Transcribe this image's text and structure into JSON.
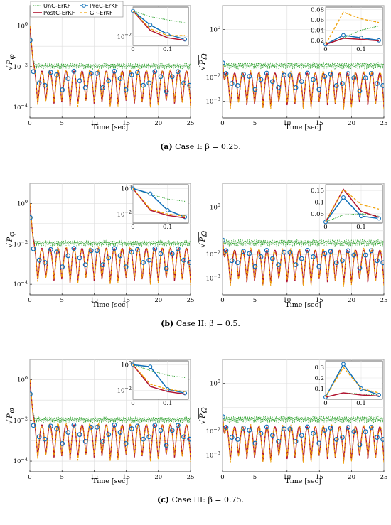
{
  "colors": {
    "UnC-ErKF": "#2ca02c",
    "PreC-ErKF": "#0f6fb8",
    "PostC-ErKF": "#b0122f",
    "GP-ErKF": "#f0a30a"
  },
  "legend": [
    "UnC-ErKF",
    "PreC-ErKF",
    "PostC-ErKF",
    "GP-ErKF"
  ],
  "captions": [
    {
      "tag": "(a)",
      "text": " Case I: β = 0.25."
    },
    {
      "tag": "(b)",
      "text": " Case II: β = 0.5."
    },
    {
      "tag": "(c)",
      "text": " Case III: β = 0.75."
    }
  ],
  "xlabel": "Time [sec]",
  "ylabel_left": "√P_φ",
  "ylabel_right": "√P_Ω",
  "chart_data": [
    {
      "type": "line",
      "panel": "a-left",
      "ylabel": "√P_φ",
      "xlabel": "Time [sec]",
      "xlim": [
        0,
        25
      ],
      "ylim": [
        3e-05,
        10
      ],
      "yscale": "log",
      "xticks": [
        "0",
        "5",
        "10",
        "15",
        "20",
        "25"
      ],
      "yticks": [
        "10^0",
        "10^-2",
        "10^-4"
      ],
      "grid": true,
      "inset": {
        "x": [
          0,
          0.05,
          0.1,
          0.15
        ],
        "xticks": [
          "0",
          "0.1"
        ],
        "yscale": "log",
        "ylim": [
          0.002,
          2
        ],
        "yticks": [
          "10^-2"
        ],
        "series": [
          {
            "name": "UnC-ErKF",
            "values": [
              1.0,
              0.35,
              0.2,
              0.12
            ]
          },
          {
            "name": "PreC-ErKF",
            "values": [
              1.0,
              0.08,
              0.015,
              0.006
            ]
          },
          {
            "name": "PostC-ErKF",
            "values": [
              1.0,
              0.03,
              0.008,
              0.005
            ]
          },
          {
            "name": "GP-ErKF",
            "values": [
              1.0,
              0.04,
              0.012,
              0.012
            ]
          }
        ]
      }
    },
    {
      "type": "line",
      "panel": "a-right",
      "ylabel": "√P_Ω",
      "xlabel": "Time [sec]",
      "xlim": [
        0,
        25
      ],
      "ylim": [
        0.0002,
        10
      ],
      "yscale": "log",
      "xticks": [
        "0",
        "5",
        "10",
        "15",
        "20",
        "25"
      ],
      "yticks": [
        "10^0",
        "10^-2",
        "10^-3"
      ],
      "grid": true,
      "inset": {
        "x": [
          0,
          0.05,
          0.1,
          0.15
        ],
        "xticks": [
          "0",
          "0.1"
        ],
        "yscale": "linear",
        "ylim": [
          0.01,
          0.085
        ],
        "yticks": [
          "0.02",
          "0.04",
          "0.06",
          "0.08"
        ],
        "series": [
          {
            "name": "UnC-ErKF",
            "values": [
              0.012,
              0.025,
              0.04,
              0.048
            ]
          },
          {
            "name": "PreC-ErKF",
            "values": [
              0.012,
              0.03,
              0.025,
              0.02
            ]
          },
          {
            "name": "PostC-ErKF",
            "values": [
              0.012,
              0.024,
              0.022,
              0.019
            ]
          },
          {
            "name": "GP-ErKF",
            "values": [
              0.012,
              0.075,
              0.062,
              0.055
            ]
          }
        ]
      }
    },
    {
      "type": "line",
      "panel": "b-left",
      "ylabel": "√P_φ",
      "xlabel": "Time [sec]",
      "xlim": [
        0,
        25
      ],
      "ylim": [
        3e-05,
        10
      ],
      "yscale": "log",
      "xticks": [
        "0",
        "5",
        "10",
        "15",
        "20",
        "25"
      ],
      "yticks": [
        "10^0",
        "10^-2",
        "10^-4"
      ],
      "grid": true,
      "inset": {
        "x": [
          0,
          0.05,
          0.1,
          0.15
        ],
        "xticks": [
          "0",
          "0.1"
        ],
        "yscale": "log",
        "ylim": [
          0.002,
          2
        ],
        "yticks": [
          "10^0",
          "10^-2"
        ],
        "series": [
          {
            "name": "UnC-ErKF",
            "values": [
              1.0,
              0.35,
              0.15,
              0.1
            ]
          },
          {
            "name": "PreC-ErKF",
            "values": [
              1.0,
              0.4,
              0.02,
              0.006
            ]
          },
          {
            "name": "PostC-ErKF",
            "values": [
              1.0,
              0.02,
              0.008,
              0.005
            ]
          },
          {
            "name": "GP-ErKF",
            "values": [
              1.0,
              0.025,
              0.01,
              0.007
            ]
          }
        ]
      }
    },
    {
      "type": "line",
      "panel": "b-right",
      "ylabel": "√P_Ω",
      "xlabel": "Time [sec]",
      "xlim": [
        0,
        25
      ],
      "ylim": [
        0.0002,
        10
      ],
      "yscale": "log",
      "xticks": [
        "0",
        "5",
        "10",
        "15",
        "20",
        "25"
      ],
      "yticks": [
        "10^0",
        "10^-2",
        "10^-3"
      ],
      "grid": true,
      "inset": {
        "x": [
          0,
          0.05,
          0.1,
          0.15
        ],
        "xticks": [
          "0",
          "0.1"
        ],
        "yscale": "linear",
        "ylim": [
          0.01,
          0.175
        ],
        "yticks": [
          "0.05",
          "0.1",
          "0.15"
        ],
        "series": [
          {
            "name": "UnC-ErKF",
            "values": [
              0.015,
              0.045,
              0.05,
              0.04
            ]
          },
          {
            "name": "PreC-ErKF",
            "values": [
              0.015,
              0.12,
              0.04,
              0.03
            ]
          },
          {
            "name": "PostC-ErKF",
            "values": [
              0.015,
              0.155,
              0.06,
              0.035
            ]
          },
          {
            "name": "GP-ErKF",
            "values": [
              0.015,
              0.155,
              0.09,
              0.07
            ]
          }
        ]
      }
    },
    {
      "type": "line",
      "panel": "c-left",
      "ylabel": "√P_φ",
      "xlabel": "Time [sec]",
      "xlim": [
        0,
        25
      ],
      "ylim": [
        3e-05,
        10
      ],
      "yscale": "log",
      "xticks": [
        "0",
        "5",
        "10",
        "15",
        "20",
        "25"
      ],
      "yticks": [
        "10^0",
        "10^-2",
        "10^-4"
      ],
      "grid": true,
      "inset": {
        "x": [
          0,
          0.05,
          0.1,
          0.15
        ],
        "xticks": [
          "0",
          "0.1"
        ],
        "yscale": "log",
        "ylim": [
          0.002,
          2
        ],
        "yticks": [
          "10^0",
          "10^-2"
        ],
        "series": [
          {
            "name": "UnC-ErKF",
            "values": [
              1.0,
              0.35,
              0.15,
              0.1
            ]
          },
          {
            "name": "PreC-ErKF",
            "values": [
              1.0,
              0.7,
              0.012,
              0.006
            ]
          },
          {
            "name": "PostC-ErKF",
            "values": [
              1.0,
              0.02,
              0.008,
              0.005
            ]
          },
          {
            "name": "GP-ErKF",
            "values": [
              1.0,
              0.03,
              0.012,
              0.008
            ]
          }
        ]
      }
    },
    {
      "type": "line",
      "panel": "c-right",
      "ylabel": "√P_Ω",
      "xlabel": "Time [sec]",
      "xlim": [
        0,
        25
      ],
      "ylim": [
        0.0002,
        10
      ],
      "yscale": "log",
      "xticks": [
        "0",
        "5",
        "10",
        "15",
        "20",
        "25"
      ],
      "yticks": [
        "10^0",
        "10^-2",
        "10^-3"
      ],
      "grid": true,
      "inset": {
        "x": [
          0,
          0.05,
          0.1,
          0.15
        ],
        "xticks": [
          "0",
          "0.1"
        ],
        "yscale": "linear",
        "ylim": [
          0.0,
          0.36
        ],
        "yticks": [
          "0.1",
          "0.2",
          "0.3"
        ],
        "series": [
          {
            "name": "UnC-ErKF",
            "values": [
              0.02,
              0.06,
              0.05,
              0.04
            ]
          },
          {
            "name": "PreC-ErKF",
            "values": [
              0.02,
              0.33,
              0.1,
              0.04
            ]
          },
          {
            "name": "PostC-ErKF",
            "values": [
              0.02,
              0.06,
              0.04,
              0.03
            ]
          },
          {
            "name": "GP-ErKF",
            "values": [
              0.02,
              0.3,
              0.1,
              0.06
            ]
          }
        ]
      }
    }
  ]
}
